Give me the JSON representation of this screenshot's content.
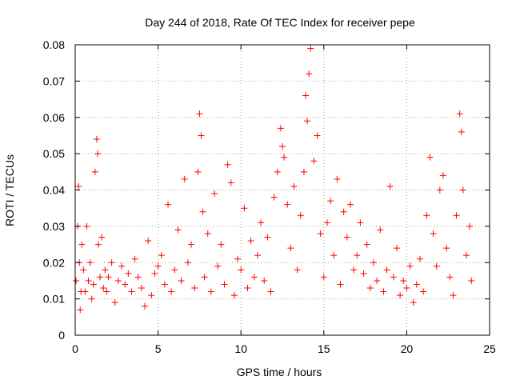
{
  "chart_data": {
    "type": "scatter",
    "title": "Day 244 of 2018, Rate Of TEC Index for receiver pepe",
    "xlabel": "GPS time / hours",
    "ylabel": "ROTI / TECUs",
    "xlim": [
      0,
      25
    ],
    "ylim": [
      0,
      0.08
    ],
    "xticks": [
      0,
      5,
      10,
      15,
      20,
      25
    ],
    "xtick_labels": [
      "0",
      "5",
      "10",
      "15",
      "20",
      "25"
    ],
    "yticks": [
      0,
      0.01,
      0.02,
      0.03,
      0.04,
      0.05,
      0.06,
      0.07,
      0.08
    ],
    "ytick_labels": [
      "0",
      "0.01",
      "0.02",
      "0.03",
      "0.04",
      "0.05",
      "0.06",
      "0.07",
      "0.08"
    ],
    "grid": true,
    "marker": "+",
    "color": "#ff0000",
    "series": [
      {
        "name": "ROTI",
        "x": [
          0.05,
          0.15,
          0.2,
          0.25,
          0.3,
          0.35,
          0.4,
          0.5,
          0.6,
          0.7,
          0.8,
          0.9,
          1.0,
          1.1,
          1.2,
          1.3,
          1.35,
          1.4,
          1.5,
          1.6,
          1.7,
          1.8,
          1.9,
          2.0,
          2.2,
          2.4,
          2.6,
          2.8,
          3.0,
          3.2,
          3.4,
          3.6,
          3.8,
          4.0,
          4.2,
          4.4,
          4.6,
          4.8,
          5.0,
          5.2,
          5.4,
          5.6,
          5.8,
          6.0,
          6.2,
          6.4,
          6.6,
          6.8,
          7.0,
          7.2,
          7.4,
          7.5,
          7.6,
          7.7,
          7.8,
          8.0,
          8.2,
          8.4,
          8.6,
          8.8,
          9.0,
          9.2,
          9.4,
          9.6,
          9.8,
          10.0,
          10.2,
          10.4,
          10.6,
          10.8,
          11.0,
          11.2,
          11.4,
          11.6,
          11.8,
          12.0,
          12.2,
          12.4,
          12.5,
          12.6,
          12.8,
          13.0,
          13.2,
          13.4,
          13.6,
          13.8,
          13.9,
          14.0,
          14.1,
          14.2,
          14.4,
          14.6,
          14.8,
          15.0,
          15.2,
          15.4,
          15.6,
          15.8,
          16.0,
          16.2,
          16.4,
          16.6,
          16.8,
          17.0,
          17.2,
          17.4,
          17.6,
          17.8,
          18.0,
          18.2,
          18.4,
          18.6,
          18.8,
          19.0,
          19.2,
          19.4,
          19.6,
          19.8,
          20.0,
          20.2,
          20.4,
          20.6,
          20.8,
          21.0,
          21.2,
          21.4,
          21.6,
          21.8,
          22.0,
          22.2,
          22.4,
          22.6,
          22.8,
          23.0,
          23.2,
          23.3,
          23.4,
          23.6,
          23.8,
          23.9
        ],
        "y": [
          0.015,
          0.03,
          0.041,
          0.02,
          0.007,
          0.012,
          0.025,
          0.018,
          0.012,
          0.03,
          0.015,
          0.02,
          0.01,
          0.014,
          0.045,
          0.054,
          0.05,
          0.025,
          0.016,
          0.027,
          0.013,
          0.018,
          0.012,
          0.016,
          0.02,
          0.009,
          0.015,
          0.019,
          0.014,
          0.017,
          0.012,
          0.021,
          0.016,
          0.013,
          0.008,
          0.026,
          0.011,
          0.017,
          0.019,
          0.022,
          0.014,
          0.036,
          0.012,
          0.018,
          0.029,
          0.015,
          0.043,
          0.02,
          0.025,
          0.013,
          0.045,
          0.061,
          0.055,
          0.034,
          0.016,
          0.028,
          0.012,
          0.039,
          0.019,
          0.025,
          0.014,
          0.047,
          0.042,
          0.011,
          0.021,
          0.018,
          0.035,
          0.013,
          0.026,
          0.016,
          0.022,
          0.031,
          0.015,
          0.027,
          0.012,
          0.038,
          0.045,
          0.057,
          0.052,
          0.049,
          0.036,
          0.024,
          0.041,
          0.018,
          0.033,
          0.045,
          0.066,
          0.059,
          0.072,
          0.079,
          0.048,
          0.055,
          0.028,
          0.016,
          0.031,
          0.037,
          0.022,
          0.043,
          0.014,
          0.034,
          0.027,
          0.036,
          0.018,
          0.022,
          0.031,
          0.017,
          0.025,
          0.013,
          0.02,
          0.015,
          0.029,
          0.012,
          0.018,
          0.041,
          0.016,
          0.024,
          0.011,
          0.015,
          0.013,
          0.019,
          0.009,
          0.014,
          0.021,
          0.012,
          0.033,
          0.049,
          0.028,
          0.019,
          0.04,
          0.044,
          0.024,
          0.016,
          0.011,
          0.033,
          0.061,
          0.056,
          0.04,
          0.022,
          0.03,
          0.015
        ]
      }
    ]
  }
}
